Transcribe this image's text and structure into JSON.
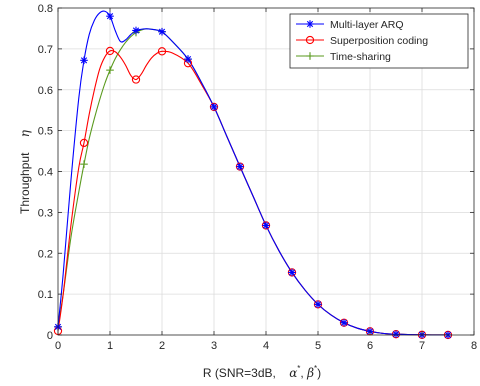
{
  "chart_data": {
    "type": "line",
    "xlabel": "R (SNR=3dB,",
    "xlabel_symbols": [
      "α",
      "*",
      ",",
      "β",
      "*",
      ")"
    ],
    "ylabel": "Throughput",
    "ylabel_symbol": "η",
    "xlim": [
      0,
      8
    ],
    "ylim": [
      0,
      0.8
    ],
    "xticks": [
      0,
      1,
      2,
      3,
      4,
      5,
      6,
      7,
      8
    ],
    "yticks": [
      0,
      0.1,
      0.2,
      0.3,
      0.4,
      0.5,
      0.6,
      0.7,
      0.8
    ],
    "grid": true,
    "legend_position": "top-right",
    "series": [
      {
        "name": "Multi-layer ARQ",
        "color": "#0000ff",
        "marker": "star",
        "x": [
          0,
          0.1,
          0.25,
          0.4,
          0.5,
          0.6,
          0.7,
          0.8,
          0.9,
          1.0,
          1.1,
          1.2,
          1.3,
          1.4,
          1.5,
          1.6,
          1.7,
          1.8,
          1.9,
          2.0,
          2.2,
          2.5,
          2.75,
          3.0,
          3.25,
          3.5,
          3.75,
          4.0,
          4.25,
          4.5,
          4.75,
          5.0,
          5.25,
          5.5,
          5.75,
          6.0,
          6.25,
          6.5,
          7.0,
          7.5
        ],
        "y": [
          0.02,
          0.15,
          0.38,
          0.58,
          0.672,
          0.735,
          0.77,
          0.788,
          0.792,
          0.78,
          0.745,
          0.718,
          0.722,
          0.735,
          0.745,
          0.748,
          0.749,
          0.748,
          0.746,
          0.742,
          0.718,
          0.675,
          0.62,
          0.558,
          0.485,
          0.412,
          0.34,
          0.268,
          0.206,
          0.153,
          0.11,
          0.075,
          0.049,
          0.03,
          0.017,
          0.009,
          0.004,
          0.002,
          0.0005,
          0.0001
        ],
        "marker_x": [
          0,
          0.5,
          1.0,
          1.5,
          2.0,
          2.5,
          3.0,
          3.5,
          4.0,
          4.5,
          5.0,
          5.5,
          6.0,
          6.5,
          7.0,
          7.5
        ]
      },
      {
        "name": "Superposition coding",
        "color": "#ff0000",
        "marker": "circle",
        "x": [
          0,
          0.1,
          0.25,
          0.4,
          0.5,
          0.6,
          0.7,
          0.8,
          0.9,
          1.0,
          1.1,
          1.2,
          1.3,
          1.4,
          1.5,
          1.6,
          1.7,
          1.8,
          1.9,
          2.0,
          2.2,
          2.5,
          2.75,
          3.0,
          3.25,
          3.5,
          3.75,
          4.0,
          4.25,
          4.5,
          4.75,
          5.0,
          5.25,
          5.5,
          5.75,
          6.0,
          6.25,
          6.5,
          7.0,
          7.5
        ],
        "y": [
          0.01,
          0.1,
          0.27,
          0.41,
          0.47,
          0.54,
          0.6,
          0.65,
          0.68,
          0.695,
          0.693,
          0.68,
          0.66,
          0.635,
          0.625,
          0.638,
          0.66,
          0.678,
          0.689,
          0.694,
          0.69,
          0.665,
          0.615,
          0.558,
          0.485,
          0.412,
          0.34,
          0.268,
          0.206,
          0.153,
          0.11,
          0.075,
          0.049,
          0.03,
          0.017,
          0.009,
          0.004,
          0.002,
          0.0005,
          0.0001
        ],
        "marker_x": [
          0,
          0.5,
          1.0,
          1.5,
          2.0,
          2.5,
          3.0,
          3.5,
          4.0,
          4.5,
          5.0,
          5.5,
          6.0,
          6.5,
          7.0,
          7.5
        ]
      },
      {
        "name": "Time-sharing",
        "color": "#5a9a1e",
        "marker": "plus",
        "x": [
          0,
          0.1,
          0.25,
          0.4,
          0.5,
          0.6,
          0.7,
          0.8,
          0.9,
          1.0,
          1.1,
          1.2,
          1.3,
          1.4,
          1.5,
          1.6,
          1.7,
          1.8,
          1.9,
          2.0,
          2.2,
          2.5,
          2.75,
          3.0,
          3.25,
          3.5,
          3.75,
          4.0,
          4.25,
          4.5,
          4.75,
          5.0,
          5.25,
          5.5,
          5.75,
          6.0,
          6.25,
          6.5,
          7.0,
          7.5
        ],
        "y": [
          0.02,
          0.1,
          0.24,
          0.35,
          0.418,
          0.48,
          0.53,
          0.575,
          0.615,
          0.648,
          0.676,
          0.698,
          0.716,
          0.73,
          0.74,
          0.746,
          0.749,
          0.748,
          0.746,
          0.742,
          0.718,
          0.675,
          0.62,
          0.558,
          0.485,
          0.412,
          0.34,
          0.268,
          0.206,
          0.153,
          0.11,
          0.075,
          0.049,
          0.03,
          0.017,
          0.009,
          0.004,
          0.002,
          0.0005,
          0.0001
        ],
        "marker_x": [
          0,
          0.5,
          1.0,
          1.5,
          2.0,
          2.5,
          3.0,
          3.5,
          4.0,
          4.5,
          5.0,
          5.5,
          6.0,
          6.5,
          7.0,
          7.5
        ]
      }
    ]
  }
}
